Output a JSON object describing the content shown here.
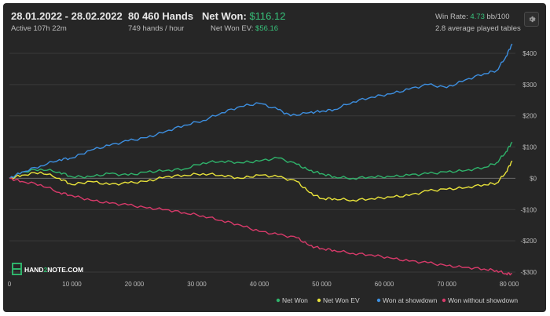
{
  "header": {
    "date_range": "28.01.2022 - 28.02.2022",
    "active_time": "Active 107h 22m",
    "hands": "80 460 Hands",
    "hands_per_hour": "749 hands / hour",
    "net_won_label": "Net Won:",
    "net_won_value": "$116.12",
    "net_won_ev_label": "Net Won  EV:",
    "net_won_ev_value": "$56.16",
    "win_rate_label": "Win Rate:",
    "win_rate_value": "4.73",
    "win_rate_unit": "bb/100",
    "avg_tables": "2.8 average played tables"
  },
  "settings_icon": "gear-icon",
  "logo": {
    "text_pre": "HAND",
    "text_mid": "2",
    "text_post": "NOTE.COM"
  },
  "colors": {
    "net_won": "#2fb36b",
    "net_won_ev": "#e8e23a",
    "showdown": "#3d8fe0",
    "non_showdown": "#d83a6a",
    "background": "#262626"
  },
  "chart_data": {
    "type": "line",
    "xlabel": "",
    "ylabel": "",
    "xlim": [
      0,
      81000
    ],
    "ylim": [
      -310,
      430
    ],
    "x_ticks": [
      0,
      10000,
      20000,
      30000,
      40000,
      50000,
      60000,
      70000,
      80000
    ],
    "x_tick_labels": [
      "0",
      "10 000",
      "20 000",
      "30 000",
      "40 000",
      "50 000",
      "60 000",
      "70 000",
      "80 000"
    ],
    "y_ticks": [
      -300,
      -200,
      -100,
      0,
      100,
      200,
      300,
      400
    ],
    "y_tick_labels": [
      "-$300",
      "-$200",
      "-$100",
      "$0",
      "$100",
      "$200",
      "$300",
      "$400"
    ],
    "grid": true,
    "legend_position": "bottom-right",
    "series": [
      {
        "name": "Net Won",
        "color_key": "net_won",
        "x": [
          0,
          2000,
          5000,
          8000,
          10000,
          13000,
          16000,
          19000,
          22000,
          25000,
          28000,
          31000,
          34000,
          37000,
          40000,
          43000,
          46000,
          48000,
          50000,
          52000,
          55000,
          58000,
          61000,
          64000,
          67000,
          70000,
          73000,
          76000,
          78000,
          79500,
          80460
        ],
        "y": [
          0,
          20,
          30,
          20,
          5,
          5,
          15,
          10,
          20,
          25,
          30,
          50,
          55,
          50,
          55,
          65,
          45,
          25,
          15,
          5,
          0,
          5,
          5,
          10,
          15,
          20,
          25,
          35,
          50,
          85,
          116
        ]
      },
      {
        "name": "Net Won  EV",
        "color_key": "net_won_ev",
        "x": [
          0,
          2000,
          5000,
          8000,
          10000,
          13000,
          16000,
          19000,
          22000,
          25000,
          28000,
          31000,
          34000,
          37000,
          40000,
          43000,
          46000,
          48000,
          50000,
          52000,
          55000,
          58000,
          61000,
          64000,
          67000,
          70000,
          73000,
          76000,
          78000,
          79500,
          80460
        ],
        "y": [
          0,
          10,
          20,
          0,
          -20,
          -10,
          -20,
          -15,
          -10,
          5,
          10,
          15,
          10,
          0,
          10,
          5,
          -10,
          -45,
          -65,
          -65,
          -70,
          -65,
          -60,
          -55,
          -40,
          -35,
          -30,
          -20,
          -15,
          20,
          56
        ]
      },
      {
        "name": "Won at showdown",
        "color_key": "showdown",
        "x": [
          0,
          2000,
          5000,
          8000,
          10000,
          13000,
          16000,
          19000,
          22000,
          25000,
          28000,
          31000,
          34000,
          37000,
          40000,
          43000,
          45000,
          48000,
          50000,
          52000,
          55000,
          58000,
          61000,
          64000,
          67000,
          70000,
          73000,
          76000,
          78000,
          79500,
          80460
        ],
        "y": [
          0,
          20,
          40,
          60,
          65,
          90,
          105,
          120,
          130,
          150,
          170,
          185,
          210,
          230,
          240,
          220,
          200,
          210,
          215,
          220,
          245,
          260,
          270,
          285,
          300,
          290,
          315,
          335,
          345,
          390,
          430
        ]
      },
      {
        "name": "Won without showdown",
        "color_key": "non_showdown",
        "x": [
          0,
          2000,
          5000,
          8000,
          10000,
          13000,
          16000,
          19000,
          22000,
          25000,
          28000,
          31000,
          34000,
          37000,
          40000,
          43000,
          46000,
          48000,
          50000,
          52000,
          55000,
          58000,
          61000,
          64000,
          67000,
          70000,
          73000,
          76000,
          78000,
          79500,
          80460
        ],
        "y": [
          0,
          -10,
          -20,
          -45,
          -55,
          -70,
          -80,
          -85,
          -95,
          -100,
          -110,
          -120,
          -135,
          -150,
          -170,
          -180,
          -190,
          -215,
          -225,
          -230,
          -240,
          -245,
          -255,
          -265,
          -270,
          -280,
          -285,
          -290,
          -295,
          -305,
          -305
        ]
      }
    ]
  }
}
